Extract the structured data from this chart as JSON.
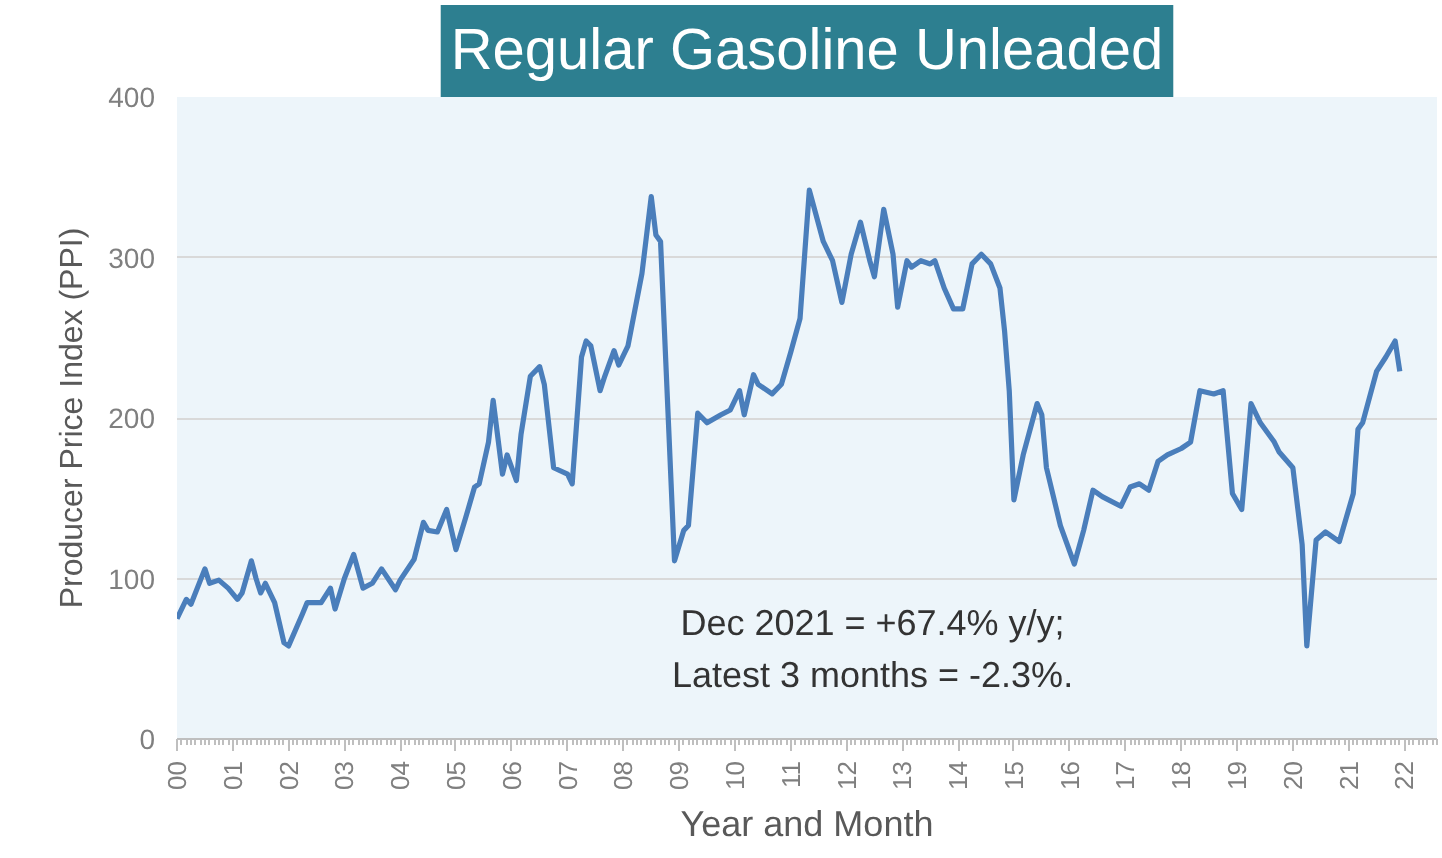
{
  "chart_data": {
    "type": "line",
    "title": "Regular Gasoline Unleaded",
    "xlabel": "Year and Month",
    "ylabel": "Producer Price Index (PPI)",
    "annotations": [
      "Dec 2021 = +67.4% y/y;",
      "Latest 3 months = -2.3%."
    ],
    "x": [
      "2000-01",
      "2000-03",
      "2000-04",
      "2000-07",
      "2000-08",
      "2000-10",
      "2000-12",
      "2001-02",
      "2001-03",
      "2001-05",
      "2001-06",
      "2001-07",
      "2001-08",
      "2001-10",
      "2001-12",
      "2002-01",
      "2002-04",
      "2002-05",
      "2002-08",
      "2002-10",
      "2002-11",
      "2003-01",
      "2003-03",
      "2003-05",
      "2003-07",
      "2003-09",
      "2003-12",
      "2004-01",
      "2004-04",
      "2004-06",
      "2004-07",
      "2004-09",
      "2004-11",
      "2005-01",
      "2005-03",
      "2005-05",
      "2005-06",
      "2005-08",
      "2005-09",
      "2005-11",
      "2005-12",
      "2006-02",
      "2006-03",
      "2006-05",
      "2006-07",
      "2006-08",
      "2006-10",
      "2007-01",
      "2007-02",
      "2007-04",
      "2007-05",
      "2007-06",
      "2007-08",
      "2007-09",
      "2007-11",
      "2007-12",
      "2008-02",
      "2008-05",
      "2008-07",
      "2008-08",
      "2008-09",
      "2008-12",
      "2009-02",
      "2009-03",
      "2009-05",
      "2009-07",
      "2009-10",
      "2009-12",
      "2010-02",
      "2010-03",
      "2010-05",
      "2010-06",
      "2010-09",
      "2010-11",
      "2011-01",
      "2011-03",
      "2011-05",
      "2011-08",
      "2011-10",
      "2011-12",
      "2012-02",
      "2012-04",
      "2012-06",
      "2012-07",
      "2012-09",
      "2012-11",
      "2012-12",
      "2013-02",
      "2013-03",
      "2013-05",
      "2013-07",
      "2013-08",
      "2013-10",
      "2013-12",
      "2014-02",
      "2014-04",
      "2014-06",
      "2014-08",
      "2014-10",
      "2014-11",
      "2014-12",
      "2015-01",
      "2015-03",
      "2015-06",
      "2015-07",
      "2015-08",
      "2015-11",
      "2016-02",
      "2016-04",
      "2016-06",
      "2016-08",
      "2016-12",
      "2017-02",
      "2017-04",
      "2017-06",
      "2017-08",
      "2017-10",
      "2018-01",
      "2018-03",
      "2018-05",
      "2018-08",
      "2018-10",
      "2018-12",
      "2019-02",
      "2019-04",
      "2019-06",
      "2019-09",
      "2019-10",
      "2020-01",
      "2020-03",
      "2020-04",
      "2020-06",
      "2020-08",
      "2020-11",
      "2021-02",
      "2021-03",
      "2021-04",
      "2021-07",
      "2021-09",
      "2021-11",
      "2021-12"
    ],
    "series": [
      {
        "color": "#4a7ebb",
        "values": [
          75,
          87,
          84,
          106,
          97,
          99,
          94,
          87,
          91,
          111,
          100,
          91,
          97,
          85,
          60,
          58,
          78,
          85,
          85,
          94,
          81,
          100,
          115,
          94,
          97,
          106,
          93,
          99,
          112,
          135,
          130,
          129,
          143,
          118,
          137,
          157,
          159,
          185,
          211,
          165,
          177,
          161,
          190,
          226,
          232,
          221,
          169,
          165,
          159,
          238,
          248,
          245,
          217,
          226,
          242,
          233,
          245,
          290,
          338,
          314,
          310,
          111,
          130,
          133,
          203,
          197,
          202,
          205,
          217,
          202,
          227,
          221,
          215,
          221,
          241,
          262,
          342,
          310,
          298,
          272,
          302,
          322,
          298,
          288,
          330,
          302,
          269,
          298,
          294,
          298,
          296,
          298,
          281,
          268,
          268,
          296,
          302,
          296,
          281,
          254,
          217,
          149,
          177,
          209,
          202,
          169,
          133,
          109,
          130,
          155,
          151,
          145,
          157,
          159,
          155,
          173,
          177,
          181,
          185,
          217,
          215,
          217,
          153,
          143,
          209,
          197,
          185,
          179,
          169,
          121,
          58,
          124,
          129,
          123,
          153,
          193,
          197,
          229,
          238,
          248,
          229
        ]
      }
    ],
    "xlim": [
      "2000-01",
      "2022-08"
    ],
    "xticks": [
      {
        "value": "2000-01",
        "label": "00"
      },
      {
        "value": "2001-01",
        "label": "01"
      },
      {
        "value": "2002-01",
        "label": "02"
      },
      {
        "value": "2003-01",
        "label": "03"
      },
      {
        "value": "2004-01",
        "label": "04"
      },
      {
        "value": "2005-01",
        "label": "05"
      },
      {
        "value": "2006-01",
        "label": "06"
      },
      {
        "value": "2007-01",
        "label": "07"
      },
      {
        "value": "2008-01",
        "label": "08"
      },
      {
        "value": "2009-01",
        "label": "09"
      },
      {
        "value": "2010-01",
        "label": "10"
      },
      {
        "value": "2011-01",
        "label": "11"
      },
      {
        "value": "2012-01",
        "label": "12"
      },
      {
        "value": "2013-01",
        "label": "13"
      },
      {
        "value": "2014-01",
        "label": "14"
      },
      {
        "value": "2015-01",
        "label": "15"
      },
      {
        "value": "2016-01",
        "label": "16"
      },
      {
        "value": "2017-01",
        "label": "17"
      },
      {
        "value": "2018-01",
        "label": "18"
      },
      {
        "value": "2019-01",
        "label": "19"
      },
      {
        "value": "2020-01",
        "label": "20"
      },
      {
        "value": "2021-01",
        "label": "21"
      },
      {
        "value": "2022-01",
        "label": "22"
      }
    ],
    "ylim": [
      0,
      400
    ],
    "yticks": [
      0,
      100,
      200,
      300,
      400
    ],
    "grid": "y",
    "line_style": "solid"
  }
}
